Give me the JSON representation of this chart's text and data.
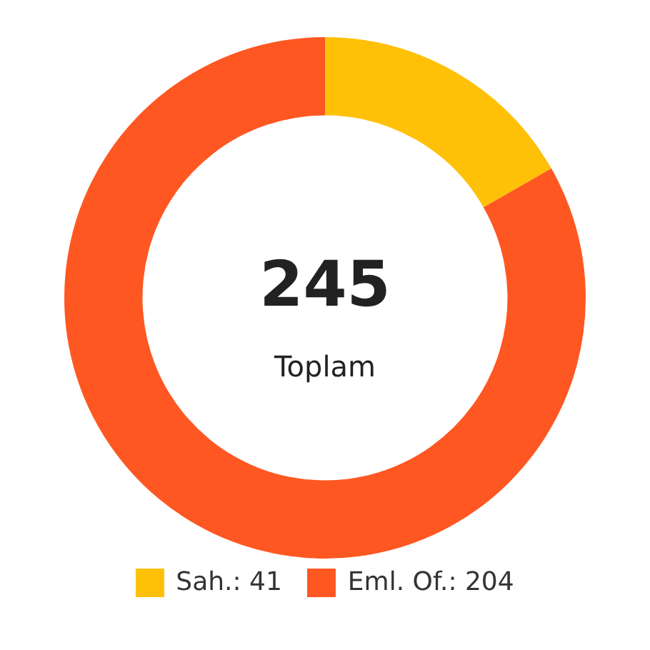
{
  "chart_data": {
    "type": "donut",
    "categories": [
      "Sah.: 41",
      "Eml. Of.: 204"
    ],
    "values": [
      41,
      204
    ],
    "colors": [
      "#ffc107",
      "#ff5722"
    ],
    "legend": "bottom",
    "annotations": [
      "245",
      "Toplam"
    ]
  }
}
